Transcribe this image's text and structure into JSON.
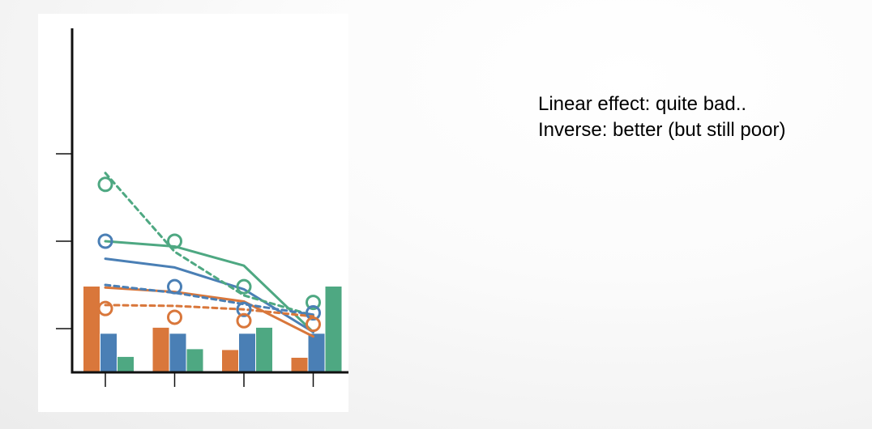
{
  "annotation": {
    "line1": "Linear effect: quite bad..",
    "line2": "Inverse: better (but still poor)"
  },
  "colors": {
    "orange": "#d9773b",
    "blue": "#4a7fb5",
    "green": "#4ea882",
    "axis": "#111111",
    "background": "#ffffff"
  },
  "chart_data": {
    "type": "line",
    "title": "",
    "xlabel": "",
    "ylabel": "",
    "x": [
      1,
      2,
      3,
      4
    ],
    "xlim": [
      0.5,
      4.5
    ],
    "ylim": [
      0,
      4.0
    ],
    "y_ticks": [
      1.5,
      2.5,
      3.5
    ],
    "x_ticks": [
      1,
      2,
      3,
      4
    ],
    "grid": false,
    "legend": "none",
    "bar_series": [
      {
        "color": "orange",
        "values": [
          1.0,
          0.52,
          0.26,
          0.17
        ]
      },
      {
        "color": "blue",
        "values": [
          0.45,
          0.45,
          0.45,
          0.45
        ]
      },
      {
        "color": "green",
        "values": [
          0.18,
          0.27,
          0.52,
          1.0
        ]
      }
    ],
    "point_series": [
      {
        "color": "green",
        "values": [
          3.15,
          2.5,
          1.98,
          1.8
        ]
      },
      {
        "color": "blue",
        "values": [
          2.5,
          1.98,
          1.72,
          1.68
        ]
      },
      {
        "color": "orange",
        "values": [
          1.73,
          1.63,
          1.59,
          1.55
        ]
      }
    ],
    "solid_line_series": [
      {
        "color": "green",
        "values": [
          2.5,
          2.44,
          2.22,
          1.46
        ]
      },
      {
        "color": "blue",
        "values": [
          2.3,
          2.2,
          1.95,
          1.46
        ]
      },
      {
        "color": "orange",
        "values": [
          1.97,
          1.92,
          1.81,
          1.41
        ]
      }
    ],
    "dashed_line_series": [
      {
        "color": "green",
        "values": [
          3.28,
          2.38,
          1.88,
          1.65
        ]
      },
      {
        "color": "blue",
        "values": [
          2.0,
          1.91,
          1.78,
          1.66
        ]
      },
      {
        "color": "orange",
        "values": [
          1.77,
          1.76,
          1.72,
          1.64
        ]
      }
    ]
  }
}
